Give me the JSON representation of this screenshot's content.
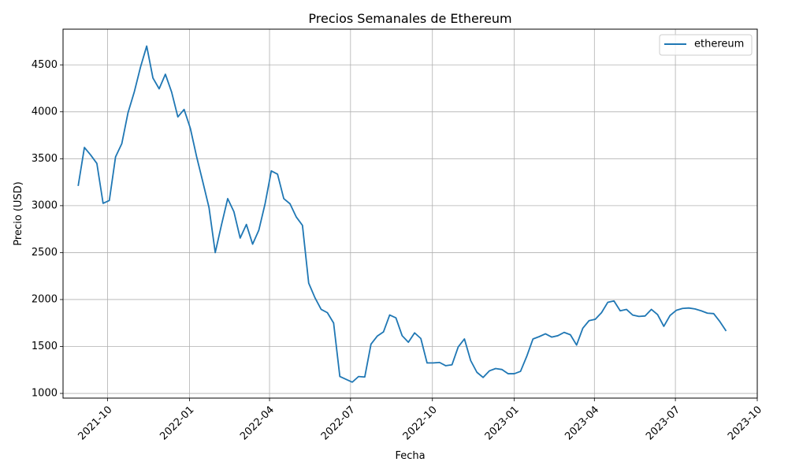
{
  "chart_data": {
    "type": "line",
    "title": "Precios Semanales de Ethereum",
    "xlabel": "Fecha",
    "ylabel": "Precio (USD)",
    "xlim": [
      "2021-08-12",
      "2023-10-01"
    ],
    "ylim": [
      950,
      4880
    ],
    "grid": true,
    "legend_position": "top-right",
    "x_ticks": [
      "2021-10-01",
      "2022-01-01",
      "2022-04-01",
      "2022-07-01",
      "2022-10-01",
      "2023-01-01",
      "2023-04-01",
      "2023-07-01",
      "2023-10-01"
    ],
    "x_tick_labels": [
      "2021-10",
      "2022-01",
      "2022-04",
      "2022-07",
      "2022-10",
      "2023-01",
      "2023-04",
      "2023-07",
      "2023-10"
    ],
    "y_ticks": [
      1000,
      1500,
      2000,
      2500,
      3000,
      3500,
      4000,
      4500
    ],
    "y_tick_labels": [
      "1000",
      "1500",
      "2000",
      "2500",
      "3000",
      "3500",
      "4000",
      "4500"
    ],
    "series": [
      {
        "name": "ethereum",
        "color": "#1f77b4",
        "x": [
          "2021-08-29",
          "2021-09-05",
          "2021-09-12",
          "2021-09-19",
          "2021-09-26",
          "2021-10-03",
          "2021-10-10",
          "2021-10-17",
          "2021-10-24",
          "2021-10-31",
          "2021-11-07",
          "2021-11-14",
          "2021-11-21",
          "2021-11-28",
          "2021-12-05",
          "2021-12-12",
          "2021-12-19",
          "2021-12-26",
          "2022-01-02",
          "2022-01-09",
          "2022-01-16",
          "2022-01-23",
          "2022-01-30",
          "2022-02-06",
          "2022-02-13",
          "2022-02-20",
          "2022-02-27",
          "2022-03-06",
          "2022-03-13",
          "2022-03-20",
          "2022-03-27",
          "2022-04-03",
          "2022-04-10",
          "2022-04-17",
          "2022-04-24",
          "2022-05-01",
          "2022-05-08",
          "2022-05-15",
          "2022-05-22",
          "2022-05-29",
          "2022-06-05",
          "2022-06-12",
          "2022-06-19",
          "2022-06-26",
          "2022-07-03",
          "2022-07-10",
          "2022-07-17",
          "2022-07-24",
          "2022-07-31",
          "2022-08-07",
          "2022-08-14",
          "2022-08-21",
          "2022-08-28",
          "2022-09-04",
          "2022-09-11",
          "2022-09-18",
          "2022-09-25",
          "2022-10-02",
          "2022-10-09",
          "2022-10-16",
          "2022-10-23",
          "2022-10-30",
          "2022-11-06",
          "2022-11-13",
          "2022-11-20",
          "2022-11-27",
          "2022-12-04",
          "2022-12-11",
          "2022-12-18",
          "2022-12-25",
          "2023-01-01",
          "2023-01-08",
          "2023-01-15",
          "2023-01-22",
          "2023-01-29",
          "2023-02-05",
          "2023-02-12",
          "2023-02-19",
          "2023-02-26",
          "2023-03-05",
          "2023-03-12",
          "2023-03-19",
          "2023-03-26",
          "2023-04-02",
          "2023-04-09",
          "2023-04-16",
          "2023-04-23",
          "2023-04-30",
          "2023-05-07",
          "2023-05-14",
          "2023-05-21",
          "2023-05-28",
          "2023-06-04",
          "2023-06-11",
          "2023-06-18",
          "2023-06-25",
          "2023-07-02",
          "2023-07-09",
          "2023-07-16",
          "2023-07-23",
          "2023-07-30",
          "2023-08-06",
          "2023-08-13",
          "2023-08-20",
          "2023-08-27"
        ],
        "y": [
          3210,
          3620,
          3540,
          3450,
          3025,
          3055,
          3520,
          3660,
          3990,
          4210,
          4475,
          4700,
          4360,
          4245,
          4400,
          4210,
          3945,
          4025,
          3825,
          3525,
          3255,
          2980,
          2500,
          2795,
          3075,
          2935,
          2655,
          2800,
          2590,
          2740,
          3020,
          3370,
          3335,
          3075,
          3020,
          2880,
          2790,
          2175,
          2020,
          1895,
          1860,
          1750,
          1180,
          1150,
          1120,
          1180,
          1175,
          1525,
          1610,
          1655,
          1835,
          1805,
          1615,
          1545,
          1645,
          1585,
          1325,
          1325,
          1330,
          1295,
          1305,
          1495,
          1580,
          1350,
          1225,
          1170,
          1240,
          1265,
          1255,
          1210,
          1210,
          1235,
          1395,
          1580,
          1605,
          1635,
          1600,
          1615,
          1650,
          1625,
          1515,
          1695,
          1775,
          1790,
          1860,
          1970,
          1985,
          1880,
          1895,
          1835,
          1820,
          1825,
          1895,
          1840,
          1715,
          1830,
          1885,
          1905,
          1910,
          1900,
          1880,
          1855,
          1850,
          1765,
          1665
        ]
      }
    ]
  }
}
